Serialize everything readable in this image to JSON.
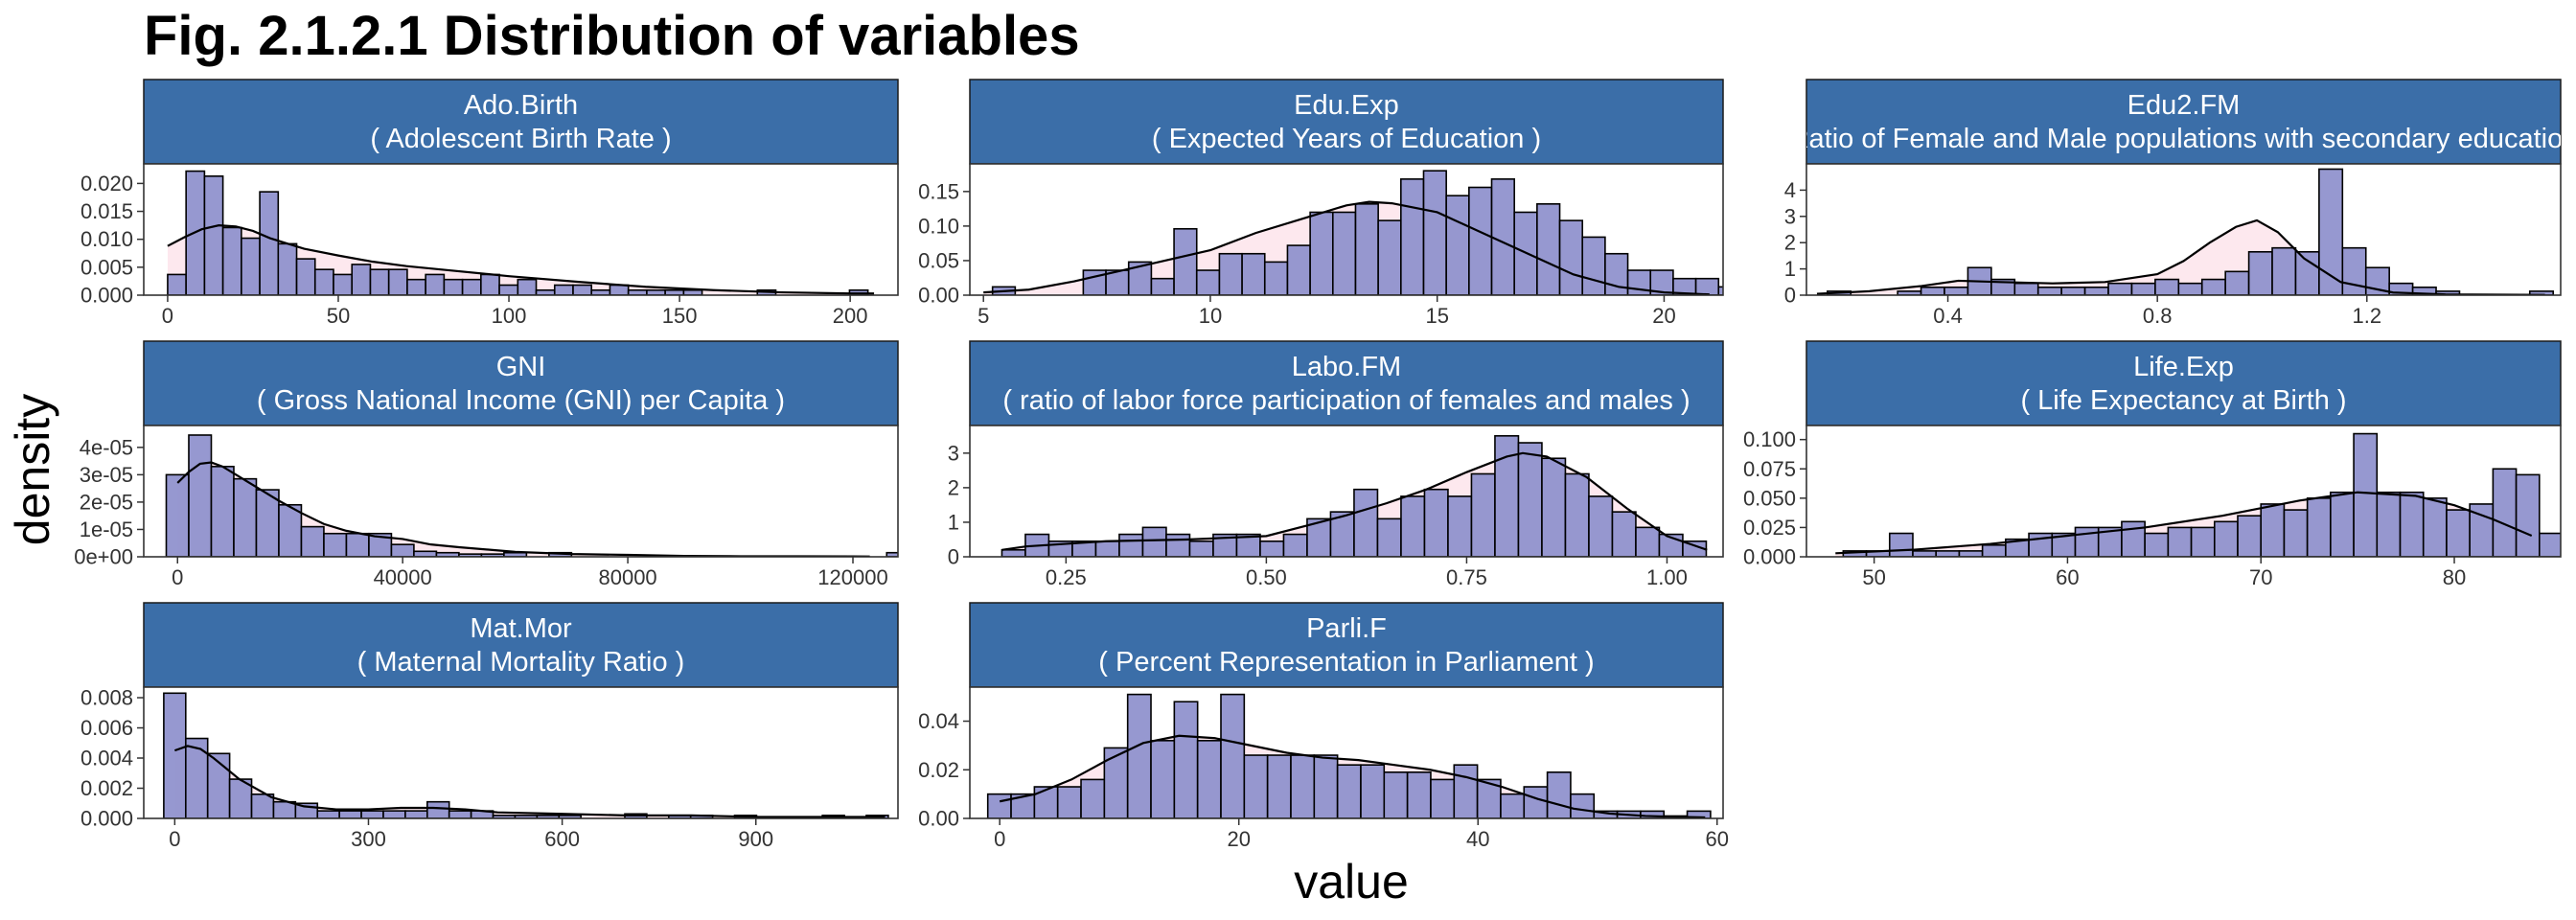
{
  "figure": {
    "title": "Fig. 2.1.2.1 Distribution of variables",
    "xlabel": "value",
    "ylabel": "density"
  },
  "colors": {
    "strip": "#3b6ea8",
    "bar_fill": "#8d8fcc",
    "density_fill": "#fde8ee",
    "outline": "#000000"
  },
  "chart_data": [
    {
      "type": "bar",
      "name": "Ado.Birth",
      "strip_line1": "Ado.Birth",
      "strip_line2": "( Adolescent Birth Rate )",
      "binwidth": 5.4,
      "x_start": 0,
      "values": [
        0.0037,
        0.0222,
        0.0213,
        0.0121,
        0.0102,
        0.0185,
        0.0092,
        0.0065,
        0.0046,
        0.0037,
        0.0055,
        0.0046,
        0.0046,
        0.0028,
        0.0037,
        0.0028,
        0.0028,
        0.0037,
        0.0018,
        0.0028,
        0.0009,
        0.0018,
        0.0018,
        0.0009,
        0.0018,
        0.0009,
        0.0009,
        0.0009,
        0.0009,
        0,
        0,
        0,
        0.0009,
        0,
        0,
        0,
        0,
        0.0009
      ],
      "density_x": [
        0,
        5,
        10,
        15,
        20,
        25,
        30,
        40,
        50,
        60,
        70,
        80,
        100,
        120,
        140,
        160,
        180,
        200,
        207
      ],
      "density_y": [
        0.0088,
        0.0104,
        0.0118,
        0.0125,
        0.0123,
        0.0115,
        0.0102,
        0.0083,
        0.0071,
        0.006,
        0.0052,
        0.0046,
        0.0034,
        0.0024,
        0.0015,
        0.0009,
        0.0005,
        0.0003,
        0.0003
      ],
      "xlim": [
        -7,
        214
      ],
      "ylim": [
        0,
        0.0235
      ],
      "xticks": [
        0,
        50,
        100,
        150,
        200
      ],
      "xtick_labels": [
        "0",
        "50",
        "100",
        "150",
        "200"
      ],
      "yticks": [
        0,
        0.005,
        0.01,
        0.015,
        0.02
      ],
      "ytick_labels": [
        "0.000",
        "0.005",
        "0.010",
        "0.015",
        "0.020"
      ]
    },
    {
      "type": "bar",
      "name": "Edu.Exp",
      "strip_line1": "Edu.Exp",
      "strip_line2": "( Expected Years of Education )",
      "binwidth": 0.5,
      "x_start": 5.2,
      "values": [
        0.012,
        0,
        0,
        0,
        0.036,
        0.036,
        0.048,
        0.024,
        0.096,
        0.036,
        0.06,
        0.06,
        0.048,
        0.072,
        0.12,
        0.12,
        0.132,
        0.108,
        0.168,
        0.18,
        0.144,
        0.156,
        0.168,
        0.12,
        0.132,
        0.108,
        0.084,
        0.06,
        0.036,
        0.036,
        0.024,
        0.024,
        0.012,
        0.024,
        0.012,
        0,
        0.012
      ],
      "density_x": [
        5,
        6,
        7,
        8,
        9,
        10,
        11,
        12,
        13,
        13.5,
        14,
        15,
        16,
        17,
        18,
        19,
        20,
        21
      ],
      "density_y": [
        0.004,
        0.008,
        0.02,
        0.035,
        0.05,
        0.065,
        0.09,
        0.11,
        0.13,
        0.135,
        0.133,
        0.12,
        0.09,
        0.06,
        0.03,
        0.012,
        0.004,
        0.001
      ],
      "xlim": [
        4.7,
        21.3
      ],
      "ylim": [
        0,
        0.19
      ],
      "xticks": [
        5,
        10,
        15,
        20
      ],
      "xtick_labels": [
        "5",
        "10",
        "15",
        "20"
      ],
      "yticks": [
        0,
        0.05,
        0.1,
        0.15
      ],
      "ytick_labels": [
        "0.00",
        "0.05",
        "0.10",
        "0.15"
      ]
    },
    {
      "type": "bar",
      "name": "Edu2.FM",
      "strip_line1": "Edu2.FM",
      "strip_line2": "( Ratio of Female and Male populations with secondary education )",
      "binwidth": 0.0447,
      "x_start": 0.17,
      "values": [
        0.15,
        0,
        0,
        0.15,
        0.3,
        0.3,
        1.05,
        0.6,
        0.45,
        0.3,
        0.3,
        0.3,
        0.45,
        0.45,
        0.6,
        0.45,
        0.6,
        0.9,
        1.65,
        1.8,
        1.65,
        4.8,
        1.8,
        1.05,
        0.45,
        0.3,
        0.15,
        0,
        0,
        0,
        0.15
      ],
      "density_x": [
        0.15,
        0.25,
        0.35,
        0.42,
        0.5,
        0.6,
        0.7,
        0.8,
        0.85,
        0.9,
        0.95,
        0.99,
        1.03,
        1.08,
        1.15,
        1.25,
        1.35,
        1.45,
        1.54
      ],
      "density_y": [
        0.05,
        0.15,
        0.35,
        0.55,
        0.5,
        0.45,
        0.5,
        0.8,
        1.3,
        2.0,
        2.6,
        2.85,
        2.4,
        1.4,
        0.5,
        0.1,
        0.03,
        0.02,
        0.01
      ],
      "xlim": [
        0.13,
        1.57
      ],
      "ylim": [
        0,
        5.0
      ],
      "xticks": [
        0.4,
        0.8,
        1.2
      ],
      "xtick_labels": [
        "0.4",
        "0.8",
        "1.2"
      ],
      "yticks": [
        0,
        1,
        2,
        3,
        4
      ],
      "ytick_labels": [
        "0",
        "1",
        "2",
        "3",
        "4"
      ]
    },
    {
      "type": "bar",
      "name": "GNI",
      "strip_line1": "GNI",
      "strip_line2": "( Gross National Income (GNI) per Capita )",
      "binwidth": 4000,
      "x_start": -2000,
      "values": [
        3e-05,
        4.45e-05,
        3.3e-05,
        2.85e-05,
        2.45e-05,
        1.9e-05,
        1.1e-05,
        8.5e-06,
        8.5e-06,
        8.5e-06,
        4.5e-06,
        2e-06,
        1.5e-06,
        1e-06,
        1e-06,
        1.5e-06,
        0,
        1.5e-06,
        0,
        0,
        0,
        0,
        0,
        0,
        0,
        0,
        0,
        0,
        0,
        0,
        0,
        0,
        1.5e-06
      ],
      "density_x": [
        0,
        2000,
        4000,
        6000,
        8000,
        10000,
        14000,
        18000,
        22000,
        26000,
        30000,
        35000,
        40000,
        45000,
        50000,
        60000,
        70000,
        80000,
        90000,
        100000,
        110000,
        123000
      ],
      "density_y": [
        2.7e-05,
        3.1e-05,
        3.4e-05,
        3.45e-05,
        3.3e-05,
        3.05e-05,
        2.55e-05,
        2.05e-05,
        1.6e-05,
        1.2e-05,
        9.5e-06,
        7.5e-06,
        6.5e-06,
        4.5e-06,
        3.5e-06,
        1.8e-06,
        1e-06,
        7e-07,
        3e-07,
        2e-07,
        2e-07,
        1e-07
      ],
      "xlim": [
        -6000,
        128000
      ],
      "ylim": [
        0,
        4.8e-05
      ],
      "xticks": [
        0,
        40000,
        80000,
        120000
      ],
      "xtick_labels": [
        "0",
        "40000",
        "80000",
        "120000"
      ],
      "yticks": [
        0,
        1e-05,
        2e-05,
        3e-05,
        4e-05
      ],
      "ytick_labels": [
        "0e+00",
        "1e-05",
        "2e-05",
        "3e-05",
        "4e-05"
      ]
    },
    {
      "type": "bar",
      "name": "Labo.FM",
      "strip_line1": "Labo.FM",
      "strip_line2": "( ratio of labor force participation of females and males )",
      "binwidth": 0.0293,
      "x_start": 0.17,
      "values": [
        0.2,
        0.65,
        0.45,
        0.45,
        0.45,
        0.65,
        0.85,
        0.65,
        0.45,
        0.65,
        0.65,
        0.45,
        0.65,
        1.1,
        1.3,
        1.95,
        1.1,
        1.75,
        1.95,
        1.75,
        2.4,
        3.5,
        3.3,
        2.85,
        2.4,
        1.75,
        1.3,
        0.85,
        0.65,
        0.45
      ],
      "density_x": [
        0.17,
        0.2,
        0.3,
        0.4,
        0.5,
        0.55,
        0.6,
        0.65,
        0.7,
        0.75,
        0.8,
        0.82,
        0.85,
        0.9,
        0.95,
        1.0,
        1.05
      ],
      "density_y": [
        0.2,
        0.3,
        0.45,
        0.5,
        0.6,
        0.9,
        1.2,
        1.55,
        1.95,
        2.45,
        2.9,
        3.0,
        2.9,
        2.3,
        1.4,
        0.6,
        0.2
      ],
      "xlim": [
        0.13,
        1.07
      ],
      "ylim": [
        0,
        3.8
      ],
      "xticks": [
        0.25,
        0.5,
        0.75,
        1.0
      ],
      "xtick_labels": [
        "0.25",
        "0.50",
        "0.75",
        "1.00"
      ],
      "yticks": [
        0,
        1,
        2,
        3
      ],
      "ytick_labels": [
        "0",
        "1",
        "2",
        "3"
      ]
    },
    {
      "type": "bar",
      "name": "Life.Exp",
      "strip_line1": "Life.Exp",
      "strip_line2": "( Life Expectancy at Birth )",
      "binwidth": 1.2,
      "x_start": 48.4,
      "values": [
        0.005,
        0.005,
        0.02,
        0.005,
        0.005,
        0.005,
        0.01,
        0.015,
        0.02,
        0.02,
        0.025,
        0.025,
        0.03,
        0.02,
        0.025,
        0.025,
        0.03,
        0.035,
        0.045,
        0.04,
        0.05,
        0.055,
        0.105,
        0.055,
        0.055,
        0.05,
        0.04,
        0.045,
        0.075,
        0.07,
        0.02
      ],
      "density_x": [
        48,
        52,
        56,
        60,
        64,
        68,
        72,
        75,
        78,
        80,
        82,
        84
      ],
      "density_y": [
        0.003,
        0.006,
        0.011,
        0.018,
        0.025,
        0.035,
        0.048,
        0.055,
        0.052,
        0.044,
        0.032,
        0.018
      ],
      "xlim": [
        46.5,
        85.5
      ],
      "ylim": [
        0,
        0.112
      ],
      "xticks": [
        50,
        60,
        70,
        80
      ],
      "xtick_labels": [
        "50",
        "60",
        "70",
        "80"
      ],
      "yticks": [
        0,
        0.025,
        0.05,
        0.075,
        0.1
      ],
      "ytick_labels": [
        "0.000",
        "0.025",
        "0.050",
        "0.075",
        "0.100"
      ]
    },
    {
      "type": "bar",
      "name": "Mat.Mor",
      "strip_line1": "Mat.Mor",
      "strip_line2": "( Maternal Mortality Ratio )",
      "binwidth": 34,
      "x_start": -17,
      "values": [
        0.0083,
        0.0053,
        0.0043,
        0.0026,
        0.0016,
        0.0011,
        0.001,
        0.0005,
        0.0005,
        0.0005,
        0.0005,
        0.0005,
        0.0011,
        0.0005,
        0.0005,
        0.0002,
        0.0002,
        0.0002,
        0.0002,
        0,
        0,
        0.0003,
        0,
        0.0002,
        0.0002,
        0,
        0.0002,
        0,
        0,
        0,
        0.0002,
        0,
        0.0002
      ],
      "density_x": [
        0,
        20,
        40,
        60,
        80,
        100,
        150,
        200,
        250,
        300,
        350,
        400,
        450,
        500,
        600,
        700,
        800,
        900,
        1000,
        1100
      ],
      "density_y": [
        0.0045,
        0.0048,
        0.0046,
        0.004,
        0.0033,
        0.0026,
        0.0014,
        0.0008,
        0.0006,
        0.0006,
        0.0007,
        0.0007,
        0.0006,
        0.0004,
        0.0003,
        0.0002,
        0.0002,
        0.0001,
        0.0001,
        0.0001
      ],
      "xlim": [
        -48,
        1120
      ],
      "ylim": [
        0,
        0.0087
      ],
      "xticks": [
        0,
        300,
        600,
        900
      ],
      "xtick_labels": [
        "0",
        "300",
        "600",
        "900"
      ],
      "yticks": [
        0,
        0.002,
        0.004,
        0.006,
        0.008
      ],
      "ytick_labels": [
        "0.000",
        "0.002",
        "0.004",
        "0.006",
        "0.008"
      ]
    },
    {
      "type": "bar",
      "name": "Parli.F",
      "strip_line1": "Parli.F",
      "strip_line2": "( Percent Representation in Parliament )",
      "binwidth": 1.95,
      "x_start": -1,
      "values": [
        0.01,
        0.01,
        0.013,
        0.013,
        0.016,
        0.029,
        0.051,
        0.032,
        0.048,
        0.032,
        0.051,
        0.026,
        0.026,
        0.026,
        0.026,
        0.022,
        0.022,
        0.019,
        0.019,
        0.016,
        0.022,
        0.016,
        0.01,
        0.013,
        0.019,
        0.01,
        0.003,
        0.003,
        0.003,
        0.001,
        0.003
      ],
      "density_x": [
        0,
        3,
        6,
        9,
        12,
        15,
        18,
        21,
        24,
        27,
        30,
        33,
        36,
        39,
        42,
        45,
        48,
        51,
        54,
        57,
        59
      ],
      "density_y": [
        0.007,
        0.01,
        0.016,
        0.024,
        0.031,
        0.034,
        0.033,
        0.03,
        0.027,
        0.025,
        0.024,
        0.022,
        0.02,
        0.017,
        0.013,
        0.008,
        0.004,
        0.002,
        0.001,
        0.0006,
        0.0004
      ],
      "xlim": [
        -2.5,
        60.5
      ],
      "ylim": [
        0,
        0.054
      ],
      "xticks": [
        0,
        20,
        40,
        60
      ],
      "xtick_labels": [
        "0",
        "20",
        "40",
        "60"
      ],
      "yticks": [
        0,
        0.02,
        0.04
      ],
      "ytick_labels": [
        "0.00",
        "0.02",
        "0.04"
      ]
    }
  ]
}
